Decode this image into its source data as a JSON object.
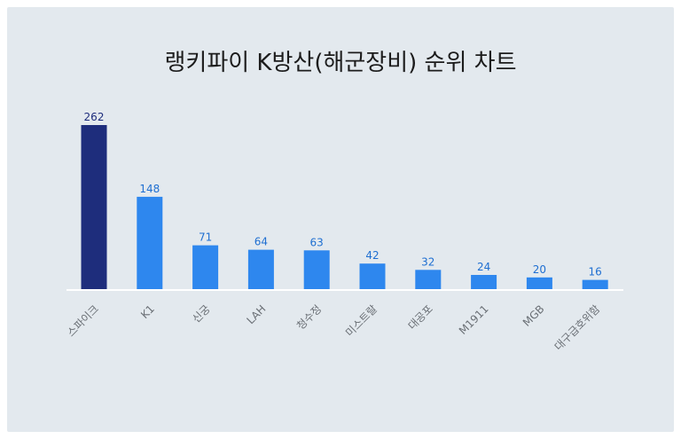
{
  "chart_data": {
    "type": "bar",
    "title": "랭키파이 K방산(해군장비) 순위 차트",
    "categories": [
      "스파이크",
      "K1",
      "신궁",
      "LAH",
      "청수정",
      "미스트랄",
      "대공포",
      "M1911",
      "MGB",
      "대구급호위함"
    ],
    "values": [
      262,
      148,
      71,
      64,
      63,
      42,
      32,
      24,
      20,
      16
    ],
    "ylim": [
      0,
      262
    ],
    "grid": false,
    "legend": "none",
    "colors": {
      "highlight": "#1e2d7c",
      "bar": "#2e87ee",
      "label": "#1f6fd1",
      "highlight_label": "#1e2d7c",
      "baseline": "#ffffff"
    }
  }
}
